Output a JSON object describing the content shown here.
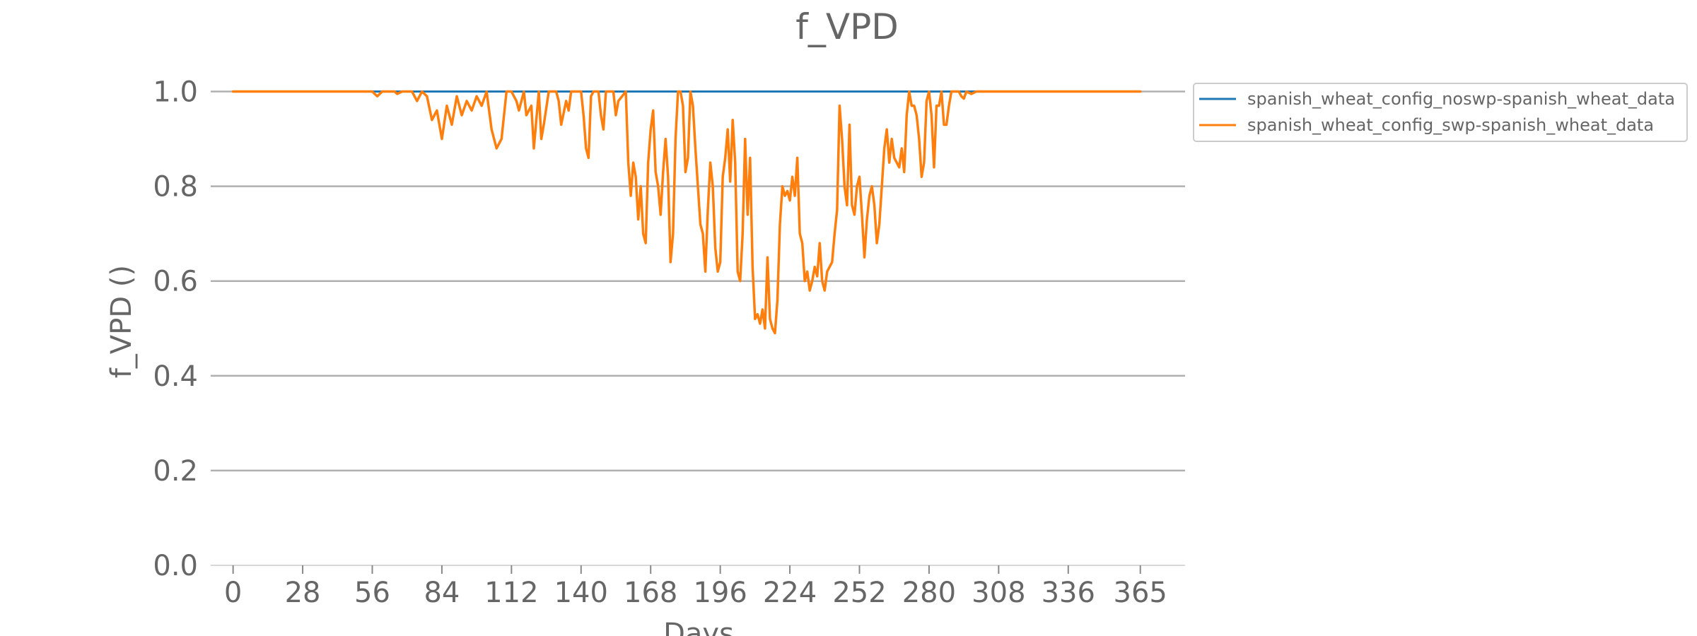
{
  "chart_data": {
    "type": "line",
    "title": "f_VPD",
    "xlabel": "Days",
    "ylabel": "f_VPD ()",
    "xlim": [
      -9,
      383
    ],
    "ylim": [
      0,
      1.05
    ],
    "x_ticks": [
      0,
      28,
      56,
      84,
      112,
      140,
      168,
      196,
      224,
      252,
      280,
      308,
      336,
      365
    ],
    "y_ticks": [
      0.0,
      0.2,
      0.4,
      0.6,
      0.8,
      1.0
    ],
    "y_tick_labels": [
      "0.0",
      "0.2",
      "0.4",
      "0.6",
      "0.8",
      "1.0"
    ],
    "grid": "horizontal",
    "legend_position": "right",
    "series": [
      {
        "name": "spanish_wheat_config_noswp-spanish_wheat_data",
        "color": "#1f77b4",
        "points": [
          [
            0,
            1.0
          ],
          [
            365,
            1.0
          ]
        ]
      },
      {
        "name": "spanish_wheat_config_swp-spanish_wheat_data",
        "color": "#ff7f0e",
        "points": [
          [
            0,
            1.0
          ],
          [
            40,
            1.0
          ],
          [
            56,
            1.0
          ],
          [
            58,
            0.99
          ],
          [
            60,
            1.0
          ],
          [
            65,
            1.0
          ],
          [
            66,
            0.995
          ],
          [
            68,
            1.0
          ],
          [
            72,
            1.0
          ],
          [
            74,
            0.98
          ],
          [
            76,
            1.0
          ],
          [
            78,
            0.99
          ],
          [
            80,
            0.94
          ],
          [
            82,
            0.96
          ],
          [
            84,
            0.9
          ],
          [
            86,
            0.97
          ],
          [
            88,
            0.93
          ],
          [
            90,
            0.99
          ],
          [
            92,
            0.95
          ],
          [
            94,
            0.98
          ],
          [
            96,
            0.96
          ],
          [
            98,
            0.99
          ],
          [
            100,
            0.97
          ],
          [
            102,
            1.0
          ],
          [
            104,
            0.92
          ],
          [
            106,
            0.88
          ],
          [
            108,
            0.9
          ],
          [
            110,
            1.0
          ],
          [
            112,
            1.0
          ],
          [
            114,
            0.98
          ],
          [
            115,
            0.96
          ],
          [
            117,
            1.0
          ],
          [
            118,
            0.95
          ],
          [
            120,
            0.97
          ],
          [
            121,
            0.88
          ],
          [
            123,
            1.0
          ],
          [
            124,
            0.9
          ],
          [
            125,
            0.93
          ],
          [
            127,
            1.0
          ],
          [
            130,
            1.0
          ],
          [
            131,
            0.98
          ],
          [
            132,
            0.93
          ],
          [
            134,
            0.98
          ],
          [
            135,
            0.96
          ],
          [
            136,
            1.0
          ],
          [
            140,
            1.0
          ],
          [
            141,
            0.95
          ],
          [
            142,
            0.88
          ],
          [
            143,
            0.86
          ],
          [
            144,
            0.99
          ],
          [
            145,
            1.0
          ],
          [
            147,
            1.0
          ],
          [
            148,
            0.95
          ],
          [
            149,
            0.92
          ],
          [
            150,
            1.0
          ],
          [
            153,
            1.0
          ],
          [
            154,
            0.95
          ],
          [
            155,
            0.98
          ],
          [
            158,
            1.0
          ],
          [
            159,
            0.85
          ],
          [
            160,
            0.78
          ],
          [
            161,
            0.85
          ],
          [
            162,
            0.82
          ],
          [
            163,
            0.73
          ],
          [
            164,
            0.8
          ],
          [
            165,
            0.7
          ],
          [
            166,
            0.68
          ],
          [
            167,
            0.85
          ],
          [
            168,
            0.92
          ],
          [
            169,
            0.96
          ],
          [
            170,
            0.83
          ],
          [
            171,
            0.8
          ],
          [
            172,
            0.74
          ],
          [
            173,
            0.83
          ],
          [
            174,
            0.9
          ],
          [
            175,
            0.82
          ],
          [
            176,
            0.64
          ],
          [
            177,
            0.7
          ],
          [
            178,
            0.9
          ],
          [
            179,
            1.0
          ],
          [
            180,
            1.0
          ],
          [
            181,
            0.97
          ],
          [
            182,
            0.83
          ],
          [
            183,
            0.86
          ],
          [
            184,
            1.0
          ],
          [
            185,
            0.97
          ],
          [
            186,
            0.88
          ],
          [
            187,
            0.8
          ],
          [
            188,
            0.72
          ],
          [
            189,
            0.7
          ],
          [
            190,
            0.62
          ],
          [
            191,
            0.75
          ],
          [
            192,
            0.85
          ],
          [
            193,
            0.8
          ],
          [
            194,
            0.67
          ],
          [
            195,
            0.62
          ],
          [
            196,
            0.64
          ],
          [
            197,
            0.82
          ],
          [
            198,
            0.86
          ],
          [
            199,
            0.92
          ],
          [
            200,
            0.81
          ],
          [
            201,
            0.94
          ],
          [
            202,
            0.85
          ],
          [
            203,
            0.62
          ],
          [
            204,
            0.6
          ],
          [
            205,
            0.7
          ],
          [
            206,
            0.9
          ],
          [
            207,
            0.74
          ],
          [
            208,
            0.86
          ],
          [
            209,
            0.63
          ],
          [
            210,
            0.52
          ],
          [
            211,
            0.53
          ],
          [
            212,
            0.51
          ],
          [
            213,
            0.54
          ],
          [
            214,
            0.5
          ],
          [
            215,
            0.65
          ],
          [
            216,
            0.52
          ],
          [
            217,
            0.5
          ],
          [
            218,
            0.49
          ],
          [
            219,
            0.56
          ],
          [
            220,
            0.72
          ],
          [
            221,
            0.8
          ],
          [
            222,
            0.78
          ],
          [
            223,
            0.79
          ],
          [
            224,
            0.77
          ],
          [
            225,
            0.82
          ],
          [
            226,
            0.78
          ],
          [
            227,
            0.86
          ],
          [
            228,
            0.7
          ],
          [
            229,
            0.68
          ],
          [
            230,
            0.6
          ],
          [
            231,
            0.62
          ],
          [
            232,
            0.58
          ],
          [
            233,
            0.6
          ],
          [
            234,
            0.63
          ],
          [
            235,
            0.61
          ],
          [
            236,
            0.68
          ],
          [
            237,
            0.6
          ],
          [
            238,
            0.58
          ],
          [
            239,
            0.62
          ],
          [
            240,
            0.63
          ],
          [
            241,
            0.64
          ],
          [
            242,
            0.7
          ],
          [
            243,
            0.75
          ],
          [
            244,
            0.97
          ],
          [
            245,
            0.9
          ],
          [
            246,
            0.8
          ],
          [
            247,
            0.76
          ],
          [
            248,
            0.93
          ],
          [
            249,
            0.76
          ],
          [
            250,
            0.74
          ],
          [
            251,
            0.8
          ],
          [
            252,
            0.82
          ],
          [
            253,
            0.74
          ],
          [
            254,
            0.65
          ],
          [
            255,
            0.73
          ],
          [
            256,
            0.78
          ],
          [
            257,
            0.8
          ],
          [
            258,
            0.76
          ],
          [
            259,
            0.68
          ],
          [
            260,
            0.72
          ],
          [
            261,
            0.8
          ],
          [
            262,
            0.88
          ],
          [
            263,
            0.92
          ],
          [
            264,
            0.85
          ],
          [
            265,
            0.9
          ],
          [
            266,
            0.86
          ],
          [
            267,
            0.85
          ],
          [
            268,
            0.84
          ],
          [
            269,
            0.88
          ],
          [
            270,
            0.83
          ],
          [
            271,
            0.95
          ],
          [
            272,
            1.0
          ],
          [
            273,
            0.97
          ],
          [
            274,
            0.97
          ],
          [
            275,
            0.95
          ],
          [
            276,
            0.9
          ],
          [
            277,
            0.82
          ],
          [
            278,
            0.85
          ],
          [
            279,
            0.98
          ],
          [
            280,
            1.0
          ],
          [
            281,
            0.95
          ],
          [
            282,
            0.84
          ],
          [
            283,
            0.97
          ],
          [
            284,
            0.97
          ],
          [
            285,
            1.0
          ],
          [
            286,
            0.93
          ],
          [
            287,
            0.93
          ],
          [
            288,
            0.97
          ],
          [
            289,
            1.0
          ],
          [
            290,
            1.0
          ],
          [
            292,
            1.0
          ],
          [
            293,
            0.99
          ],
          [
            294,
            0.985
          ],
          [
            295,
            1.0
          ],
          [
            297,
            0.995
          ],
          [
            299,
            1.0
          ],
          [
            365,
            1.0
          ]
        ]
      }
    ]
  }
}
